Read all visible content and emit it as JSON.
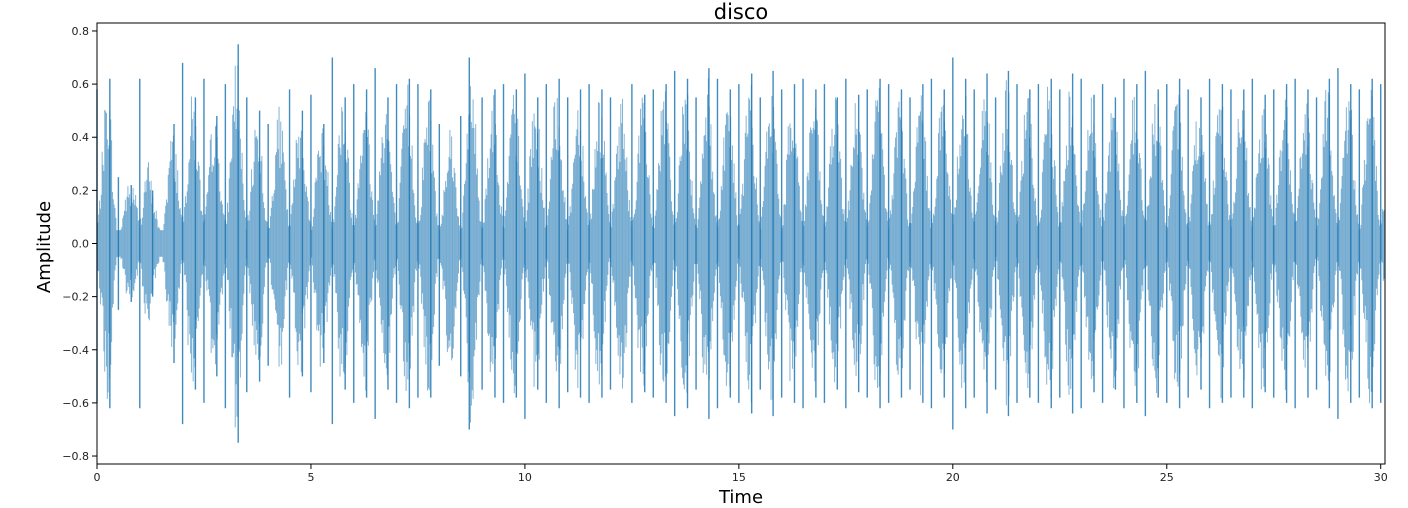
{
  "chart_data": {
    "type": "area",
    "title": "disco",
    "xlabel": "Time",
    "ylabel": "Amplitude",
    "xlim": [
      0,
      30.1
    ],
    "ylim": [
      -0.83,
      0.83
    ],
    "x_ticks": [
      0,
      5,
      10,
      15,
      20,
      25,
      30
    ],
    "y_ticks": [
      -0.8,
      -0.6,
      -0.4,
      -0.2,
      0.0,
      0.2,
      0.4,
      0.6,
      0.8
    ],
    "y_tick_labels": [
      "−0.8",
      "−0.6",
      "−0.4",
      "−0.2",
      "0.0",
      "0.2",
      "0.4",
      "0.6",
      "0.8"
    ],
    "grid": false,
    "colors": {
      "waveform": "#1f77b4"
    },
    "envelope": {
      "x": [
        0.0,
        0.3,
        0.5,
        0.8,
        1.0,
        1.3,
        1.8,
        2.0,
        2.3,
        2.5,
        2.8,
        3.0,
        3.3,
        3.5,
        3.8,
        4.0,
        4.5,
        4.8,
        5.0,
        5.3,
        5.5,
        5.8,
        6.0,
        6.3,
        6.5,
        6.8,
        7.0,
        7.3,
        7.5,
        7.8,
        8.0,
        8.5,
        8.7,
        9.0,
        9.3,
        9.5,
        9.8,
        10.0,
        10.3,
        10.5,
        10.8,
        11.0,
        11.3,
        11.5,
        11.8,
        12.0,
        12.5,
        12.8,
        13.0,
        13.3,
        13.5,
        13.8,
        14.0,
        14.3,
        14.5,
        14.8,
        15.0,
        15.3,
        15.5,
        15.8,
        16.0,
        16.3,
        16.5,
        16.8,
        17.0,
        17.3,
        17.5,
        17.8,
        18.0,
        18.3,
        18.5,
        18.8,
        19.0,
        19.3,
        19.5,
        19.8,
        20.0,
        20.3,
        20.5,
        20.8,
        21.0,
        21.3,
        21.5,
        21.8,
        22.0,
        22.3,
        22.5,
        22.8,
        23.0,
        23.3,
        23.5,
        23.8,
        24.0,
        24.3,
        24.5,
        24.8,
        25.0,
        25.3,
        25.5,
        25.8,
        26.0,
        26.3,
        26.5,
        26.8,
        27.0,
        27.3,
        27.5,
        27.8,
        28.0,
        28.3,
        28.5,
        28.8,
        29.0,
        29.3,
        29.5,
        29.8,
        30.0
      ],
      "upper": [
        0.58,
        0.62,
        0.25,
        0.22,
        0.62,
        0.2,
        0.45,
        0.68,
        0.55,
        0.62,
        0.48,
        0.6,
        0.75,
        0.55,
        0.5,
        0.45,
        0.58,
        0.5,
        0.56,
        0.45,
        0.7,
        0.55,
        0.6,
        0.58,
        0.66,
        0.55,
        0.6,
        0.62,
        0.6,
        0.58,
        0.45,
        0.48,
        0.7,
        0.55,
        0.58,
        0.6,
        0.58,
        0.64,
        0.55,
        0.6,
        0.62,
        0.55,
        0.58,
        0.6,
        0.58,
        0.55,
        0.6,
        0.56,
        0.58,
        0.6,
        0.65,
        0.62,
        0.55,
        0.66,
        0.62,
        0.58,
        0.6,
        0.64,
        0.55,
        0.65,
        0.58,
        0.6,
        0.62,
        0.58,
        0.6,
        0.55,
        0.62,
        0.56,
        0.58,
        0.62,
        0.6,
        0.58,
        0.55,
        0.6,
        0.62,
        0.58,
        0.7,
        0.62,
        0.58,
        0.64,
        0.55,
        0.65,
        0.6,
        0.58,
        0.6,
        0.62,
        0.58,
        0.64,
        0.62,
        0.56,
        0.6,
        0.55,
        0.62,
        0.6,
        0.65,
        0.58,
        0.6,
        0.62,
        0.58,
        0.55,
        0.62,
        0.6,
        0.58,
        0.58,
        0.62,
        0.56,
        0.58,
        0.6,
        0.62,
        0.58,
        0.55,
        0.62,
        0.66,
        0.6,
        0.58,
        0.62,
        0.6
      ],
      "lower": [
        -0.6,
        -0.62,
        -0.25,
        -0.22,
        -0.62,
        -0.2,
        -0.45,
        -0.68,
        -0.55,
        -0.6,
        -0.5,
        -0.62,
        -0.75,
        -0.56,
        -0.52,
        -0.46,
        -0.58,
        -0.5,
        -0.56,
        -0.45,
        -0.68,
        -0.55,
        -0.6,
        -0.58,
        -0.66,
        -0.55,
        -0.6,
        -0.62,
        -0.58,
        -0.58,
        -0.46,
        -0.5,
        -0.7,
        -0.55,
        -0.58,
        -0.6,
        -0.58,
        -0.66,
        -0.55,
        -0.6,
        -0.62,
        -0.56,
        -0.58,
        -0.6,
        -0.58,
        -0.55,
        -0.6,
        -0.56,
        -0.58,
        -0.6,
        -0.65,
        -0.62,
        -0.55,
        -0.66,
        -0.62,
        -0.58,
        -0.6,
        -0.64,
        -0.55,
        -0.65,
        -0.58,
        -0.6,
        -0.62,
        -0.58,
        -0.6,
        -0.55,
        -0.62,
        -0.56,
        -0.58,
        -0.62,
        -0.6,
        -0.58,
        -0.55,
        -0.6,
        -0.62,
        -0.58,
        -0.7,
        -0.62,
        -0.58,
        -0.64,
        -0.55,
        -0.65,
        -0.6,
        -0.58,
        -0.6,
        -0.62,
        -0.58,
        -0.64,
        -0.62,
        -0.56,
        -0.6,
        -0.55,
        -0.62,
        -0.6,
        -0.65,
        -0.58,
        -0.6,
        -0.62,
        -0.58,
        -0.55,
        -0.62,
        -0.6,
        -0.58,
        -0.58,
        -0.62,
        -0.56,
        -0.58,
        -0.6,
        -0.62,
        -0.58,
        -0.55,
        -0.62,
        -0.66,
        -0.6,
        -0.58,
        -0.62,
        -0.6
      ]
    }
  }
}
